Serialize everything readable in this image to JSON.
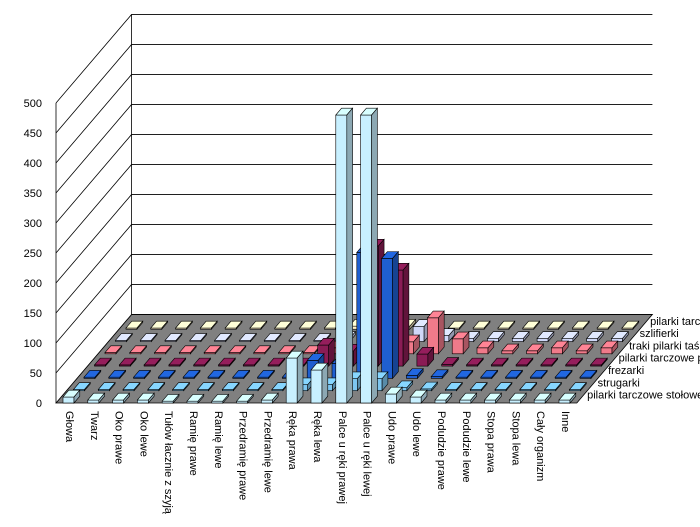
{
  "chart_data": {
    "type": "bar",
    "subtype": "3d-column",
    "title": "",
    "xlabel": "",
    "ylabel": "",
    "ylim": [
      0,
      500
    ],
    "yticks": [
      0,
      50,
      100,
      150,
      200,
      250,
      300,
      350,
      400,
      450,
      500
    ],
    "categories": [
      "Głowa",
      "Twarz",
      "Oko prawe",
      "Oko lewe",
      "Tułów łacznie z szyją",
      "Ramię prawe",
      "Ramię lewe",
      "Przedramię prawe",
      "Przedramię lewe",
      "Ręka prawa",
      "Ręka lewa",
      "Palce u ręki prawej",
      "Palce u ręki lewej",
      "Udo prawe",
      "Udo lewe",
      "Podudzie prawe",
      "Podudzie lewe",
      "Stopa prawa",
      "Stopa lewa",
      "Cały organizm",
      "Inne"
    ],
    "series": [
      {
        "name": "pilarki tarczowe stołowe",
        "color": "#c8f0ff",
        "values": [
          10,
          5,
          5,
          5,
          3,
          3,
          3,
          3,
          5,
          75,
          55,
          480,
          480,
          15,
          10,
          5,
          5,
          5,
          5,
          5,
          5
        ]
      },
      {
        "name": "strugarki",
        "color": "#7dc6f0",
        "values": [
          2,
          2,
          2,
          2,
          2,
          2,
          2,
          2,
          2,
          10,
          10,
          20,
          20,
          5,
          3,
          2,
          2,
          2,
          2,
          2,
          2
        ]
      },
      {
        "name": "frezarki",
        "color": "#1f5fd0",
        "values": [
          2,
          2,
          2,
          2,
          2,
          2,
          2,
          2,
          2,
          30,
          25,
          210,
          200,
          5,
          3,
          2,
          2,
          2,
          2,
          2,
          2
        ]
      },
      {
        "name": "pilarki  tarczowe pozostałe",
        "color": "#8a1c55",
        "values": [
          2,
          2,
          2,
          2,
          2,
          2,
          2,
          2,
          2,
          35,
          25,
          200,
          160,
          20,
          3,
          2,
          2,
          2,
          2,
          2,
          2
        ]
      },
      {
        "name": "traki pilarki  taśmowe",
        "color": "#f07a8a",
        "values": [
          2,
          2,
          2,
          2,
          2,
          2,
          2,
          2,
          2,
          10,
          5,
          15,
          20,
          60,
          25,
          10,
          5,
          5,
          10,
          5,
          10
        ]
      },
      {
        "name": "szlifierki",
        "color": "#d0d8f8",
        "values": [
          2,
          2,
          2,
          2,
          2,
          2,
          2,
          2,
          2,
          5,
          5,
          10,
          25,
          10,
          5,
          5,
          5,
          5,
          5,
          5,
          5
        ]
      },
      {
        "name": "pilarki tarczowe ręczne",
        "color": "#fff2c8",
        "values": [
          2,
          2,
          2,
          2,
          2,
          2,
          2,
          2,
          2,
          5,
          5,
          5,
          5,
          2,
          2,
          2,
          2,
          2,
          2,
          2,
          2
        ]
      }
    ]
  }
}
